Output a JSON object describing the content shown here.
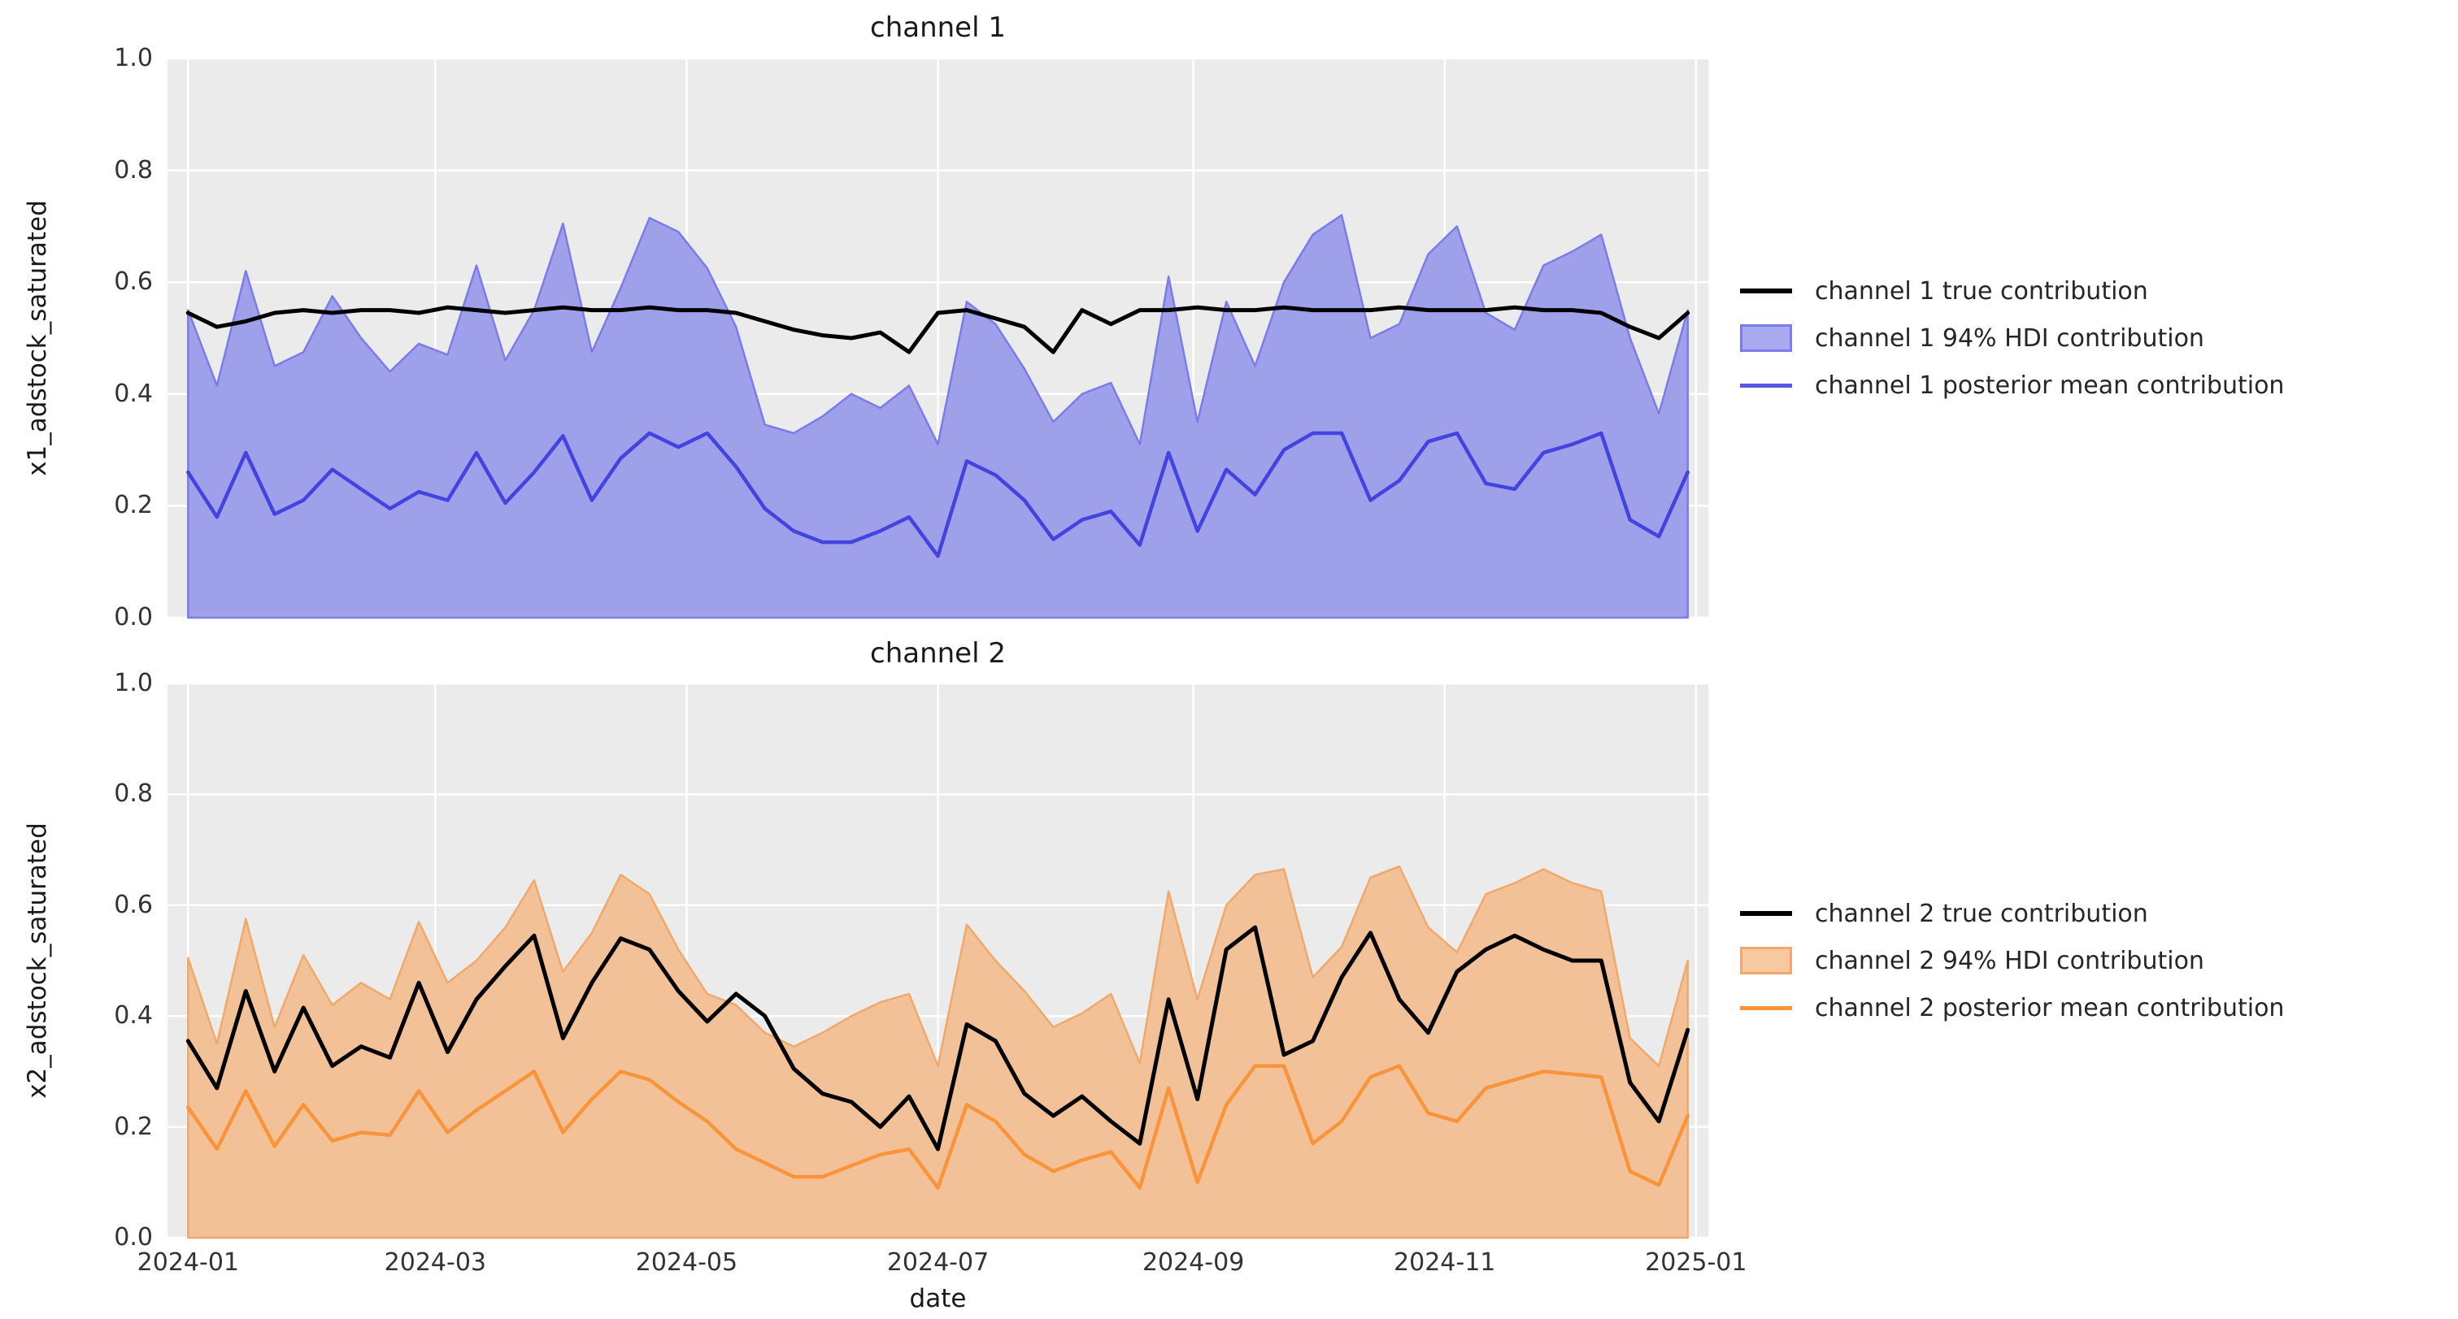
{
  "figure": {
    "background": "#ffffff",
    "axes_background": "#ebebeb",
    "grid_color": "#ffffff",
    "xlabel": "date",
    "xticks": [
      {
        "label": "2024-01",
        "day": 0
      },
      {
        "label": "2024-03",
        "day": 60
      },
      {
        "label": "2024-05",
        "day": 121
      },
      {
        "label": "2024-07",
        "day": 182
      },
      {
        "label": "2024-09",
        "day": 244
      },
      {
        "label": "2024-11",
        "day": 305
      },
      {
        "label": "2025-01",
        "day": 366
      }
    ],
    "yticks": [
      "1.0",
      "0.8",
      "0.6",
      "0.4",
      "0.2",
      "0.0"
    ]
  },
  "subplots": [
    {
      "title": "channel 1",
      "ylabel": "x1_adstock_saturated",
      "colors": {
        "true_line": "#000000",
        "band_fill": "#9fa0ea",
        "band_edge": "#7b7ce8",
        "mean_line": "#4343df"
      },
      "legend": [
        {
          "label": "channel 1 true contribution",
          "type": "line",
          "color": "#000000"
        },
        {
          "label": "channel 1 94% HDI contribution",
          "type": "patch",
          "fill": "#a9a9ef",
          "edge": "#7b7ce8"
        },
        {
          "label": "channel 1 posterior mean contribution",
          "type": "line",
          "color": "#5558e2"
        }
      ]
    },
    {
      "title": "channel 2",
      "ylabel": "x2_adstock_saturated",
      "colors": {
        "true_line": "#000000",
        "band_fill": "#f2c198",
        "band_edge": "#f0a96b",
        "mean_line": "#f9943b"
      },
      "legend": [
        {
          "label": "channel 2 true contribution",
          "type": "line",
          "color": "#000000"
        },
        {
          "label": "channel 2 94% HDI contribution",
          "type": "patch",
          "fill": "#f6c9a0",
          "edge": "#f0a96b"
        },
        {
          "label": "channel 2 posterior mean contribution",
          "type": "line",
          "color": "#f9943b"
        }
      ]
    }
  ],
  "chart_data": [
    {
      "type": "line",
      "title": "channel 1",
      "xlabel": "date",
      "ylabel": "x1_adstock_saturated",
      "x_start": "2024-01-01",
      "x_step_days": 7,
      "n_points": 53,
      "ylim": [
        0.0,
        1.0
      ],
      "x_tick_labels": [
        "2024-01",
        "2024-03",
        "2024-05",
        "2024-07",
        "2024-09",
        "2024-11",
        "2025-01"
      ],
      "grid": true,
      "legend_position": "center right outside",
      "hdi_lower_constant": 0.0,
      "series": [
        {
          "name": "channel 1 true contribution",
          "values": [
            0.545,
            0.52,
            0.53,
            0.545,
            0.55,
            0.545,
            0.55,
            0.55,
            0.545,
            0.555,
            0.55,
            0.545,
            0.55,
            0.555,
            0.55,
            0.55,
            0.555,
            0.55,
            0.55,
            0.545,
            0.53,
            0.515,
            0.505,
            0.5,
            0.51,
            0.475,
            0.545,
            0.55,
            0.535,
            0.52,
            0.475,
            0.55,
            0.525,
            0.55,
            0.55,
            0.555,
            0.55,
            0.55,
            0.555,
            0.55,
            0.55,
            0.55,
            0.555,
            0.55,
            0.55,
            0.55,
            0.555,
            0.55,
            0.55,
            0.545,
            0.52,
            0.5,
            0.545
          ]
        },
        {
          "name": "channel 1 94% HDI contribution upper",
          "values": [
            0.55,
            0.415,
            0.62,
            0.45,
            0.475,
            0.575,
            0.5,
            0.44,
            0.49,
            0.47,
            0.63,
            0.46,
            0.55,
            0.705,
            0.475,
            0.59,
            0.715,
            0.69,
            0.625,
            0.52,
            0.345,
            0.33,
            0.36,
            0.4,
            0.375,
            0.415,
            0.31,
            0.565,
            0.525,
            0.445,
            0.35,
            0.4,
            0.42,
            0.31,
            0.61,
            0.35,
            0.565,
            0.45,
            0.6,
            0.685,
            0.72,
            0.5,
            0.525,
            0.65,
            0.7,
            0.545,
            0.515,
            0.63,
            0.655,
            0.685,
            0.5,
            0.365,
            0.55
          ]
        },
        {
          "name": "channel 1 posterior mean contribution",
          "values": [
            0.26,
            0.18,
            0.295,
            0.185,
            0.21,
            0.265,
            0.23,
            0.195,
            0.225,
            0.21,
            0.295,
            0.205,
            0.26,
            0.325,
            0.21,
            0.285,
            0.33,
            0.305,
            0.33,
            0.27,
            0.195,
            0.155,
            0.135,
            0.135,
            0.155,
            0.18,
            0.11,
            0.28,
            0.255,
            0.21,
            0.14,
            0.175,
            0.19,
            0.13,
            0.295,
            0.155,
            0.265,
            0.22,
            0.3,
            0.33,
            0.33,
            0.21,
            0.245,
            0.315,
            0.33,
            0.24,
            0.23,
            0.295,
            0.31,
            0.33,
            0.175,
            0.145,
            0.26
          ]
        }
      ]
    },
    {
      "type": "line",
      "title": "channel 2",
      "xlabel": "date",
      "ylabel": "x2_adstock_saturated",
      "x_start": "2024-01-01",
      "x_step_days": 7,
      "n_points": 53,
      "ylim": [
        0.0,
        1.0
      ],
      "x_tick_labels": [
        "2024-01",
        "2024-03",
        "2024-05",
        "2024-07",
        "2024-09",
        "2024-11",
        "2025-01"
      ],
      "grid": true,
      "legend_position": "center right outside",
      "hdi_lower_constant": 0.0,
      "series": [
        {
          "name": "channel 2 true contribution",
          "values": [
            0.355,
            0.27,
            0.445,
            0.3,
            0.415,
            0.31,
            0.345,
            0.325,
            0.46,
            0.335,
            0.43,
            0.49,
            0.545,
            0.36,
            0.46,
            0.54,
            0.52,
            0.445,
            0.39,
            0.44,
            0.4,
            0.305,
            0.26,
            0.245,
            0.2,
            0.255,
            0.16,
            0.385,
            0.355,
            0.26,
            0.22,
            0.255,
            0.21,
            0.17,
            0.43,
            0.25,
            0.52,
            0.56,
            0.33,
            0.355,
            0.47,
            0.55,
            0.43,
            0.37,
            0.48,
            0.52,
            0.545,
            0.52,
            0.5,
            0.5,
            0.28,
            0.21,
            0.375
          ]
        },
        {
          "name": "channel 2 94% HDI contribution upper",
          "values": [
            0.505,
            0.35,
            0.575,
            0.38,
            0.51,
            0.42,
            0.46,
            0.43,
            0.57,
            0.46,
            0.5,
            0.56,
            0.645,
            0.48,
            0.55,
            0.655,
            0.62,
            0.52,
            0.44,
            0.42,
            0.37,
            0.345,
            0.37,
            0.4,
            0.425,
            0.44,
            0.31,
            0.565,
            0.5,
            0.445,
            0.38,
            0.405,
            0.44,
            0.315,
            0.625,
            0.43,
            0.6,
            0.655,
            0.665,
            0.47,
            0.525,
            0.65,
            0.67,
            0.56,
            0.515,
            0.62,
            0.64,
            0.665,
            0.64,
            0.625,
            0.36,
            0.31,
            0.5
          ]
        },
        {
          "name": "channel 2 posterior mean contribution",
          "values": [
            0.235,
            0.16,
            0.265,
            0.165,
            0.24,
            0.175,
            0.19,
            0.185,
            0.265,
            0.19,
            0.23,
            0.265,
            0.3,
            0.19,
            0.25,
            0.3,
            0.285,
            0.245,
            0.21,
            0.16,
            0.135,
            0.11,
            0.11,
            0.13,
            0.15,
            0.16,
            0.09,
            0.24,
            0.21,
            0.15,
            0.12,
            0.14,
            0.155,
            0.09,
            0.27,
            0.1,
            0.24,
            0.31,
            0.31,
            0.17,
            0.21,
            0.29,
            0.31,
            0.225,
            0.21,
            0.27,
            0.285,
            0.3,
            0.295,
            0.29,
            0.12,
            0.095,
            0.22
          ]
        }
      ]
    }
  ]
}
